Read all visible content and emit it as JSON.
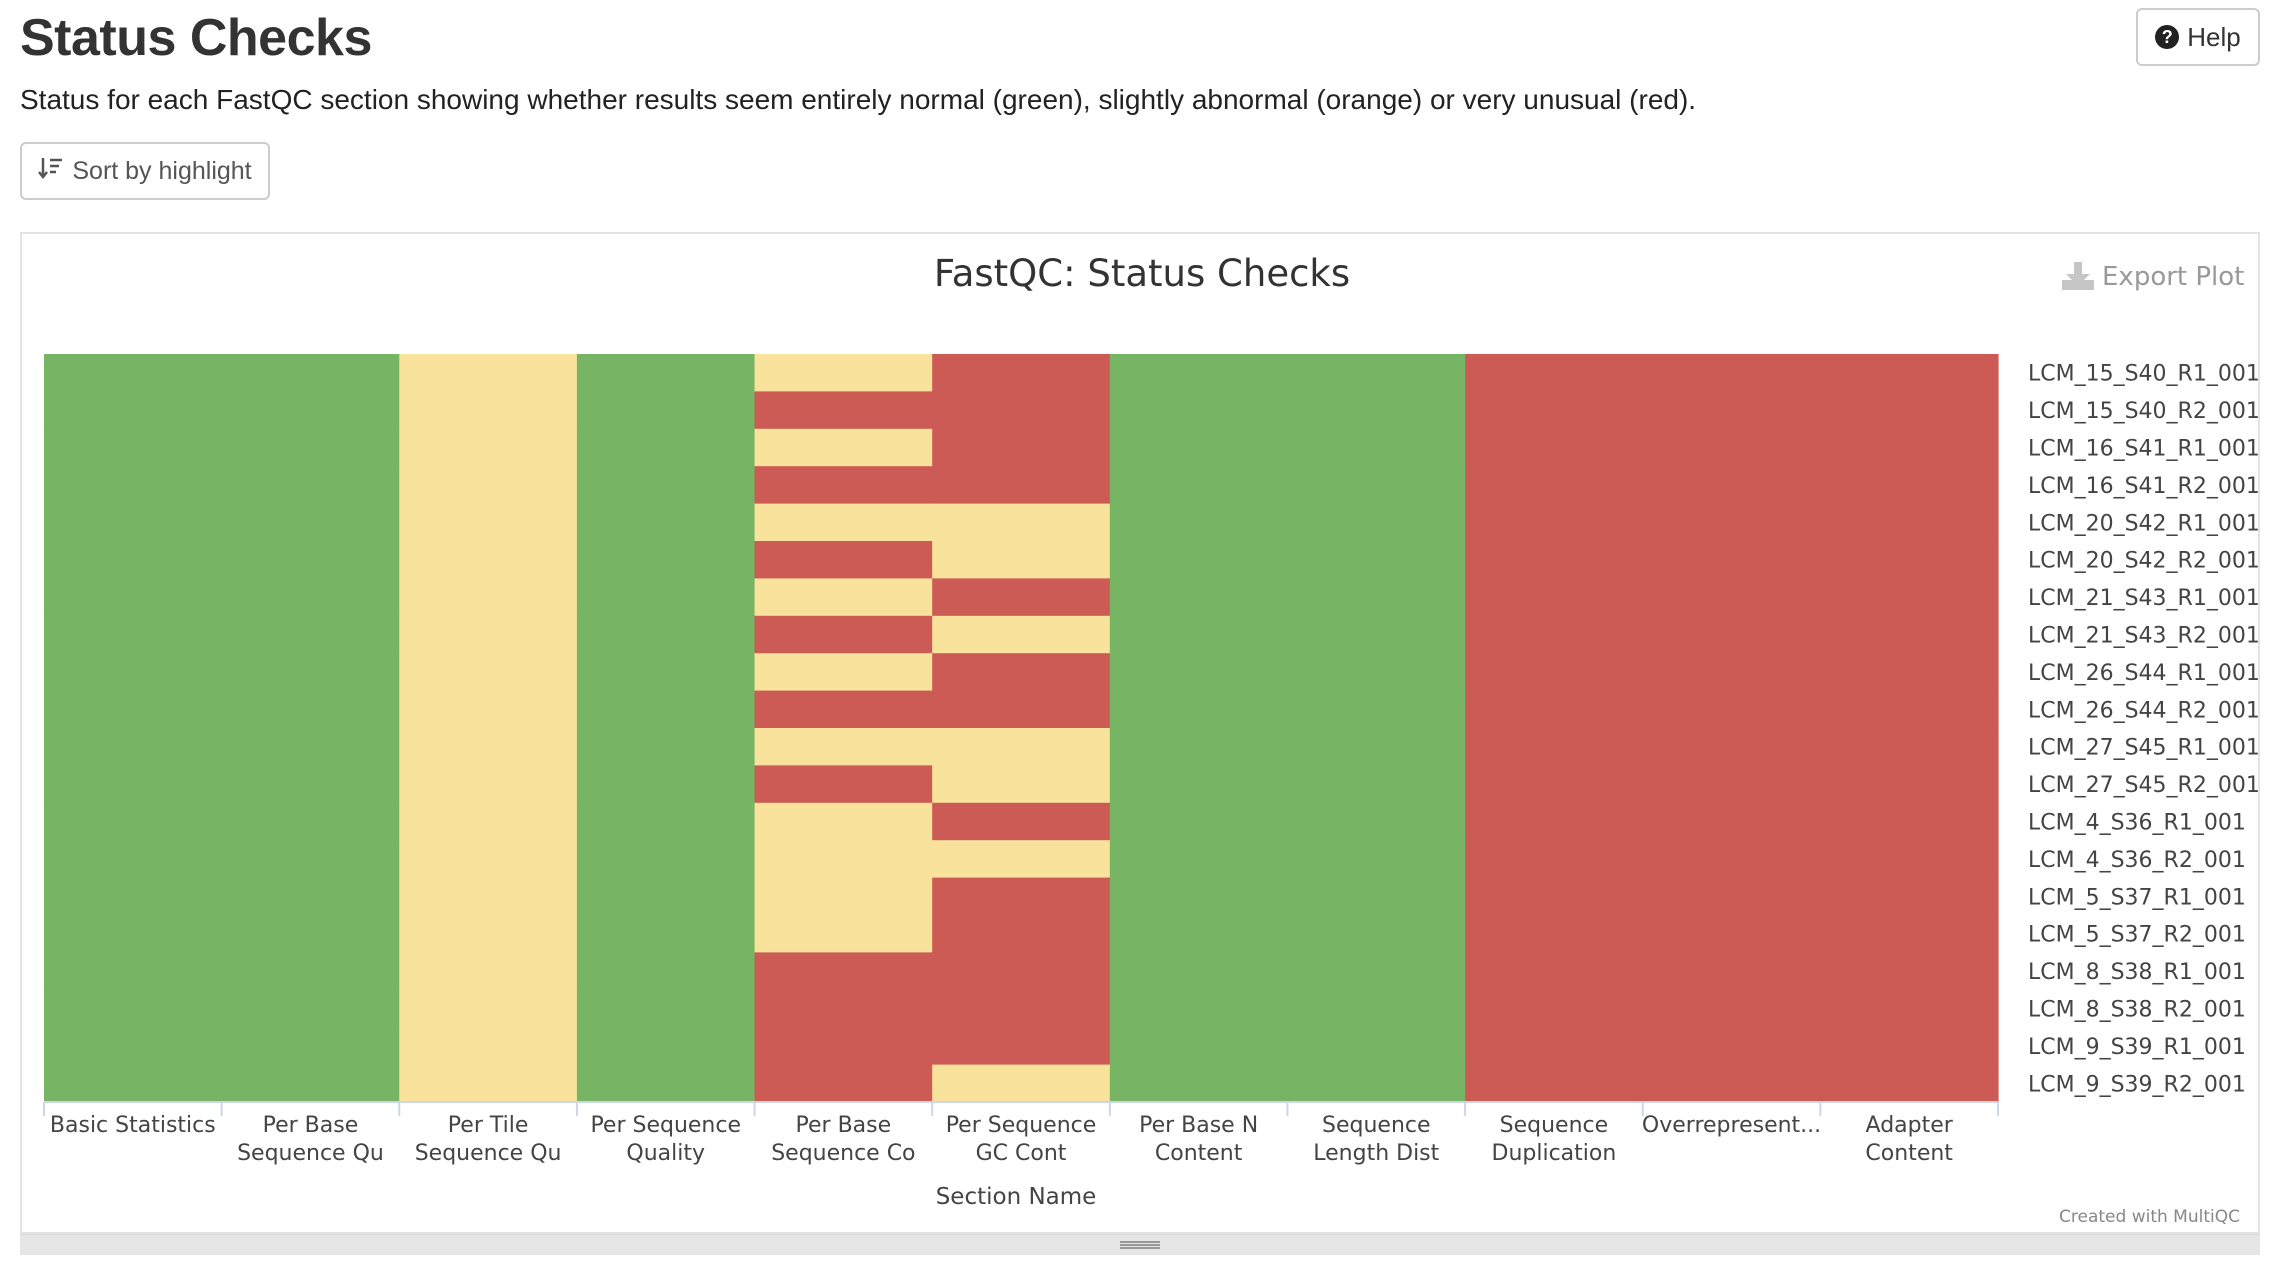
{
  "header": {
    "title": "Status Checks",
    "description": "Status for each FastQC section showing whether results seem entirely normal (green), slightly abnormal (orange) or very unusual (red).",
    "help_label": "Help",
    "help_icon": "question-circle-icon",
    "sort_label": "Sort by highlight",
    "sort_icon": "sort-amount-icon"
  },
  "plot": {
    "export_label": "Export Plot",
    "export_icon": "download-icon",
    "credit": "Created with MultiQC"
  },
  "colors": {
    "pass": "#77b564",
    "warn": "#f8e29c",
    "fail": "#cb5b54"
  },
  "chart_data": {
    "type": "heatmap",
    "title": "FastQC: Status Checks",
    "xlabel": "Section Name",
    "ylabel": "",
    "categories": [
      "Basic Statistics",
      "Per Base Sequence Qu",
      "Per Tile Sequence Qu",
      "Per Sequence Quality",
      "Per Base Sequence Co",
      "Per Sequence GC Cont",
      "Per Base N Content",
      "Sequence Length Dist",
      "Sequence Duplication",
      "Overrepresent...",
      "Adapter Content"
    ],
    "x_tick_lines": [
      [
        "Basic Statistics"
      ],
      [
        "Per Base",
        "Sequence Qu"
      ],
      [
        "Per Tile",
        "Sequence Qu"
      ],
      [
        "Per Sequence",
        "Quality"
      ],
      [
        "Per Base",
        "Sequence Co"
      ],
      [
        "Per Sequence",
        "GC Cont"
      ],
      [
        "Per Base N",
        "Content"
      ],
      [
        "Sequence",
        "Length Dist"
      ],
      [
        "Sequence",
        "Duplication"
      ],
      [
        "Overrepresent..."
      ],
      [
        "Adapter",
        "Content"
      ]
    ],
    "samples": [
      "LCM_15_S40_R1_001",
      "LCM_15_S40_R2_001",
      "LCM_16_S41_R1_001",
      "LCM_16_S41_R2_001",
      "LCM_20_S42_R1_001",
      "LCM_20_S42_R2_001",
      "LCM_21_S43_R1_001",
      "LCM_21_S43_R2_001",
      "LCM_26_S44_R1_001",
      "LCM_26_S44_R2_001",
      "LCM_27_S45_R1_001",
      "LCM_27_S45_R2_001",
      "LCM_4_S36_R1_001",
      "LCM_4_S36_R2_001",
      "LCM_5_S37_R1_001",
      "LCM_5_S37_R2_001",
      "LCM_8_S38_R1_001",
      "LCM_8_S38_R2_001",
      "LCM_9_S39_R1_001",
      "LCM_9_S39_R2_001"
    ],
    "status_legend": {
      "pass": "normal (green)",
      "warn": "slightly abnormal (orange)",
      "fail": "very unusual (red)"
    },
    "values": [
      [
        "pass",
        "pass",
        "warn",
        "pass",
        "warn",
        "fail",
        "pass",
        "pass",
        "fail",
        "fail",
        "fail"
      ],
      [
        "pass",
        "pass",
        "warn",
        "pass",
        "fail",
        "fail",
        "pass",
        "pass",
        "fail",
        "fail",
        "fail"
      ],
      [
        "pass",
        "pass",
        "warn",
        "pass",
        "warn",
        "fail",
        "pass",
        "pass",
        "fail",
        "fail",
        "fail"
      ],
      [
        "pass",
        "pass",
        "warn",
        "pass",
        "fail",
        "fail",
        "pass",
        "pass",
        "fail",
        "fail",
        "fail"
      ],
      [
        "pass",
        "pass",
        "warn",
        "pass",
        "warn",
        "warn",
        "pass",
        "pass",
        "fail",
        "fail",
        "fail"
      ],
      [
        "pass",
        "pass",
        "warn",
        "pass",
        "fail",
        "warn",
        "pass",
        "pass",
        "fail",
        "fail",
        "fail"
      ],
      [
        "pass",
        "pass",
        "warn",
        "pass",
        "warn",
        "fail",
        "pass",
        "pass",
        "fail",
        "fail",
        "fail"
      ],
      [
        "pass",
        "pass",
        "warn",
        "pass",
        "fail",
        "warn",
        "pass",
        "pass",
        "fail",
        "fail",
        "fail"
      ],
      [
        "pass",
        "pass",
        "warn",
        "pass",
        "warn",
        "fail",
        "pass",
        "pass",
        "fail",
        "fail",
        "fail"
      ],
      [
        "pass",
        "pass",
        "warn",
        "pass",
        "fail",
        "fail",
        "pass",
        "pass",
        "fail",
        "fail",
        "fail"
      ],
      [
        "pass",
        "pass",
        "warn",
        "pass",
        "warn",
        "warn",
        "pass",
        "pass",
        "fail",
        "fail",
        "fail"
      ],
      [
        "pass",
        "pass",
        "warn",
        "pass",
        "fail",
        "warn",
        "pass",
        "pass",
        "fail",
        "fail",
        "fail"
      ],
      [
        "pass",
        "pass",
        "warn",
        "pass",
        "warn",
        "fail",
        "pass",
        "pass",
        "fail",
        "fail",
        "fail"
      ],
      [
        "pass",
        "pass",
        "warn",
        "pass",
        "warn",
        "warn",
        "pass",
        "pass",
        "fail",
        "fail",
        "fail"
      ],
      [
        "pass",
        "pass",
        "warn",
        "pass",
        "warn",
        "fail",
        "pass",
        "pass",
        "fail",
        "fail",
        "fail"
      ],
      [
        "pass",
        "pass",
        "warn",
        "pass",
        "warn",
        "fail",
        "pass",
        "pass",
        "fail",
        "fail",
        "fail"
      ],
      [
        "pass",
        "pass",
        "warn",
        "pass",
        "fail",
        "fail",
        "pass",
        "pass",
        "fail",
        "fail",
        "fail"
      ],
      [
        "pass",
        "pass",
        "warn",
        "pass",
        "fail",
        "fail",
        "pass",
        "pass",
        "fail",
        "fail",
        "fail"
      ],
      [
        "pass",
        "pass",
        "warn",
        "pass",
        "fail",
        "fail",
        "pass",
        "pass",
        "fail",
        "fail",
        "fail"
      ],
      [
        "pass",
        "pass",
        "warn",
        "pass",
        "fail",
        "warn",
        "pass",
        "pass",
        "fail",
        "fail",
        "fail"
      ]
    ],
    "grid": false,
    "legend": "none"
  }
}
